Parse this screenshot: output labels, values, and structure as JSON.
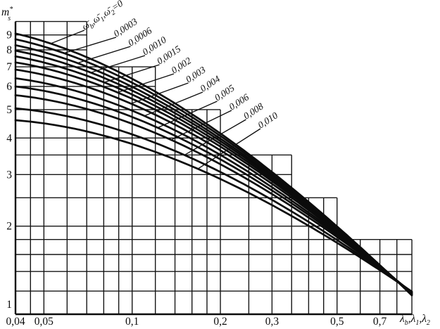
{
  "figure": {
    "background": "#ffffff",
    "ink": "#0d0d0d"
  },
  "chart_data": {
    "type": "line",
    "title": "",
    "description": "Log-log design chart: coefficient m*s versus relative stiffness λb,λ1,λ2 for a family of frequency parameters ω̄b,ω̄1,ω̄2; grid drawn as stepped log paper",
    "x_axis": {
      "label": "λb,λ1,λ2",
      "label_tokens": [
        {
          "t": "λ"
        },
        {
          "sub": "b"
        },
        {
          "t": ",λ"
        },
        {
          "sub": "1"
        },
        {
          "t": ",λ"
        },
        {
          "sub": "2"
        }
      ],
      "scale": "log",
      "range": [
        0.04,
        0.9
      ],
      "ticks": [
        {
          "value": 0.04,
          "label": "0,04"
        },
        {
          "value": 0.05,
          "label": "0,05"
        },
        {
          "value": 0.1,
          "label": "0,1"
        },
        {
          "value": 0.2,
          "label": "0,2"
        },
        {
          "value": 0.3,
          "label": "0,3"
        },
        {
          "value": 0.5,
          "label": "0,5"
        },
        {
          "value": 0.7,
          "label": "0,7"
        }
      ]
    },
    "y_axis": {
      "label": "m*s",
      "label_tokens": [
        {
          "t": "m"
        },
        {
          "stack": {
            "sup": "*",
            "sub": "s"
          }
        }
      ],
      "scale": "log",
      "range": [
        1,
        10
      ],
      "ticks": [
        {
          "value": 9,
          "label": "9"
        },
        {
          "value": 8,
          "label": "8"
        },
        {
          "value": 7,
          "label": "7"
        },
        {
          "value": 6,
          "label": "6"
        },
        {
          "value": 5,
          "label": "5"
        },
        {
          "value": 4,
          "label": "4"
        },
        {
          "value": 3,
          "label": "3"
        },
        {
          "value": 2,
          "label": "2"
        },
        {
          "value": 1,
          "label": "1"
        }
      ]
    },
    "grid": {
      "x_lines": [
        0.04,
        0.045,
        0.05,
        0.06,
        0.07,
        0.08,
        0.09,
        0.1,
        0.12,
        0.14,
        0.16,
        0.18,
        0.2,
        0.25,
        0.3,
        0.35,
        0.4,
        0.45,
        0.5,
        0.6,
        0.7,
        0.8,
        0.9
      ],
      "y_lines": [
        1,
        1.2,
        1.4,
        1.6,
        1.8,
        2,
        2.5,
        3,
        3.5,
        4,
        5,
        6,
        7,
        8,
        9,
        10
      ],
      "steps": [
        {
          "from": 0.04,
          "to": 0.07,
          "top": 10
        },
        {
          "from": 0.07,
          "to": 0.12,
          "top": 7
        },
        {
          "from": 0.12,
          "to": 0.2,
          "top": 5
        },
        {
          "from": 0.2,
          "to": 0.35,
          "top": 3.5
        },
        {
          "from": 0.35,
          "to": 0.5,
          "top": 2.5
        },
        {
          "from": 0.5,
          "to": 0.9,
          "top": 1.8
        }
      ]
    },
    "series": [
      {
        "name": "ω̄b,ω̄1,ω̄2=0",
        "param_value": 0,
        "label_tokens": [
          {
            "t": "ω̄"
          },
          {
            "sub": "b"
          },
          {
            "t": ",ω̄"
          },
          {
            "sub": "1"
          },
          {
            "t": ",ω̄"
          },
          {
            "sub": "2"
          },
          {
            "t": "=0"
          }
        ],
        "start": 9.1,
        "end": 1.16,
        "shape": {
          "c": 0.36,
          "e": 1.45
        }
      },
      {
        "name": "0,0003",
        "param_value": 0.0003,
        "start": 8.7,
        "end": 1.163,
        "shape": {
          "c": 0.344,
          "e": 1.462
        }
      },
      {
        "name": "0,0006",
        "param_value": 0.0006,
        "start": 8.3,
        "end": 1.166,
        "shape": {
          "c": 0.327,
          "e": 1.474
        }
      },
      {
        "name": "0,0010",
        "param_value": 0.001,
        "start": 7.95,
        "end": 1.17,
        "shape": {
          "c": 0.311,
          "e": 1.485
        }
      },
      {
        "name": "0,0015",
        "param_value": 0.0015,
        "start": 7.6,
        "end": 1.173,
        "shape": {
          "c": 0.295,
          "e": 1.497
        }
      },
      {
        "name": "0,002",
        "param_value": 0.002,
        "start": 7.25,
        "end": 1.176,
        "shape": {
          "c": 0.278,
          "e": 1.509
        }
      },
      {
        "name": "0,003",
        "param_value": 0.003,
        "start": 6.85,
        "end": 1.179,
        "shape": {
          "c": 0.262,
          "e": 1.521
        }
      },
      {
        "name": "0,004",
        "param_value": 0.004,
        "start": 6.4,
        "end": 1.182,
        "shape": {
          "c": 0.245,
          "e": 1.533
        }
      },
      {
        "name": "0,005",
        "param_value": 0.005,
        "start": 6.0,
        "end": 1.186,
        "shape": {
          "c": 0.229,
          "e": 1.544
        }
      },
      {
        "name": "0,006",
        "param_value": 0.006,
        "start": 5.6,
        "end": 1.189,
        "shape": {
          "c": 0.213,
          "e": 1.556
        }
      },
      {
        "name": "0,008",
        "param_value": 0.008,
        "start": 5.05,
        "end": 1.192,
        "shape": {
          "c": 0.196,
          "e": 1.568
        }
      },
      {
        "name": "0,010",
        "param_value": 0.01,
        "start": 4.6,
        "end": 1.195,
        "shape": {
          "c": 0.18,
          "e": 1.58
        }
      }
    ],
    "legend_position": "diagonal labels upper right, leader lines to curves",
    "grid_on": true
  }
}
